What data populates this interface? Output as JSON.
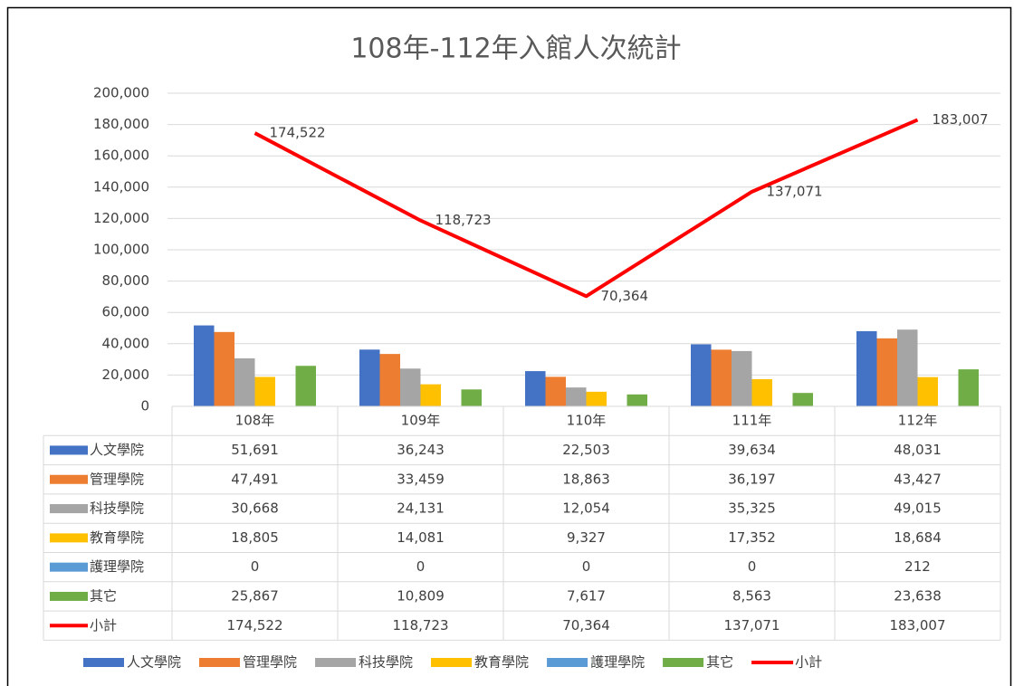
{
  "chart_data": {
    "type": "bar",
    "title": "108年-112年入館人次統計",
    "categories": [
      "108年",
      "109年",
      "110年",
      "111年",
      "112年"
    ],
    "series": [
      {
        "name": "人文學院",
        "color": "#4472c4",
        "type": "bar",
        "values": [
          51691,
          36243,
          22503,
          39634,
          48031
        ],
        "value_labels": [
          "51,691",
          "36,243",
          "22,503",
          "39,634",
          "48,031"
        ]
      },
      {
        "name": "管理學院",
        "color": "#ed7d31",
        "type": "bar",
        "values": [
          47491,
          33459,
          18863,
          36197,
          43427
        ],
        "value_labels": [
          "47,491",
          "33,459",
          "18,863",
          "36,197",
          "43,427"
        ]
      },
      {
        "name": "科技學院",
        "color": "#a5a5a5",
        "type": "bar",
        "values": [
          30668,
          24131,
          12054,
          35325,
          49015
        ],
        "value_labels": [
          "30,668",
          "24,131",
          "12,054",
          "35,325",
          "49,015"
        ]
      },
      {
        "name": "教育學院",
        "color": "#ffc000",
        "type": "bar",
        "values": [
          18805,
          14081,
          9327,
          17352,
          18684
        ],
        "value_labels": [
          "18,805",
          "14,081",
          "9,327",
          "17,352",
          "18,684"
        ]
      },
      {
        "name": "護理學院",
        "color": "#5b9bd5",
        "type": "bar",
        "values": [
          0,
          0,
          0,
          0,
          212
        ],
        "value_labels": [
          "0",
          "0",
          "0",
          "0",
          "212"
        ]
      },
      {
        "name": "其它",
        "color": "#70ad47",
        "type": "bar",
        "values": [
          25867,
          10809,
          7617,
          8563,
          23638
        ],
        "value_labels": [
          "25,867",
          "10,809",
          "7,617",
          "8,563",
          "23,638"
        ]
      },
      {
        "name": "小計",
        "color": "#ff0000",
        "type": "line",
        "values": [
          174522,
          118723,
          70364,
          137071,
          183007
        ],
        "value_labels": [
          "174,522",
          "118,723",
          "70,364",
          "137,071",
          "183,007"
        ]
      }
    ],
    "ylim": [
      0,
      200000
    ],
    "yticks": [
      0,
      {
        "value": 20000,
        "label": "20,000"
      },
      {
        "value": 40000,
        "label": "40,000"
      },
      {
        "value": 60000,
        "label": "60,000"
      },
      {
        "value": 80000,
        "label": "80,000"
      },
      {
        "value": 100000,
        "label": "100,000"
      },
      {
        "value": 120000,
        "label": "120,000"
      },
      {
        "value": 140000,
        "label": "140,000"
      },
      {
        "value": 160000,
        "label": "160,000"
      },
      {
        "value": 180000,
        "label": "180,000"
      },
      {
        "value": 200000,
        "label": "200,000"
      }
    ],
    "grid": true,
    "data_table": true,
    "legend": "bottom"
  }
}
